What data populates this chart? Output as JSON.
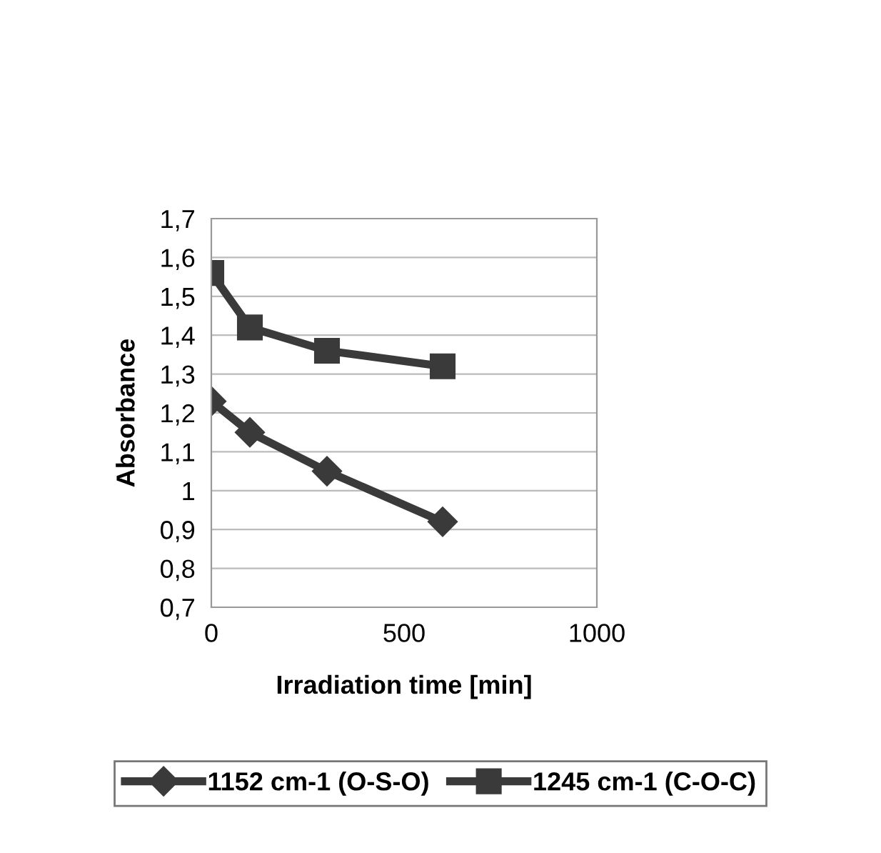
{
  "chart_data": {
    "type": "line",
    "xlabel": "Irradiation time [min]",
    "ylabel": "Absorbance",
    "x": [
      0,
      100,
      300,
      600
    ],
    "series": [
      {
        "name": "1152 cm-1 (O-S-O)",
        "color": "#3a3a3a",
        "values": [
          1.23,
          1.15,
          1.05,
          0.92
        ],
        "marker": "diamond"
      },
      {
        "name": "1245 cm-1 (C-O-C)",
        "color": "#3a3a3a",
        "values": [
          1.56,
          1.42,
          1.36,
          1.32
        ],
        "marker": "square"
      }
    ],
    "xlim": [
      0,
      1000
    ],
    "xticks": [
      0,
      500,
      1000
    ],
    "ylim": [
      0.7,
      1.7
    ],
    "yticks": [
      {
        "value": 0.7,
        "label": "0,7"
      },
      {
        "value": 0.8,
        "label": "0,8"
      },
      {
        "value": 0.9,
        "label": "0,9"
      },
      1,
      {
        "value": 1.1,
        "label": "1,1"
      },
      {
        "value": 1.2,
        "label": "1,2"
      },
      {
        "value": 1.3,
        "label": "1,3"
      },
      {
        "value": 1.4,
        "label": "1,4"
      },
      {
        "value": 1.5,
        "label": "1,5"
      },
      {
        "value": 1.6,
        "label": "1,6"
      },
      {
        "value": 1.7,
        "label": "1,7"
      }
    ],
    "grid": "y",
    "legend": "bottom",
    "line_style": "solid"
  }
}
